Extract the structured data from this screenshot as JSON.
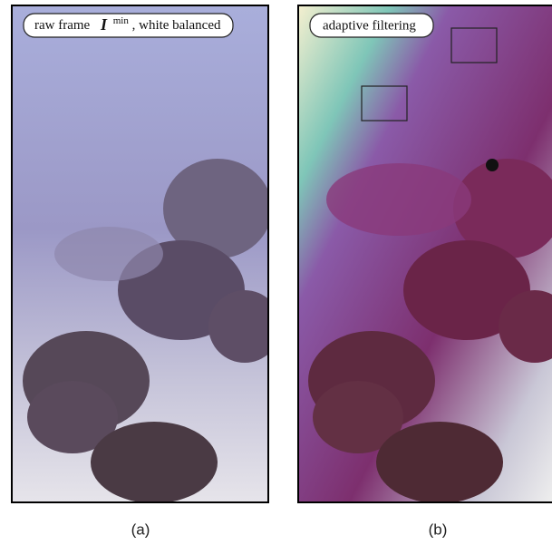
{
  "panels": [
    {
      "tag": {
        "prefix": "raw frame",
        "symbol": "I",
        "superscript": "min",
        "suffix": ", white balanced"
      },
      "caption": "(a)"
    },
    {
      "tag": {
        "text": "adaptive filtering"
      },
      "caption": "(b)"
    }
  ]
}
